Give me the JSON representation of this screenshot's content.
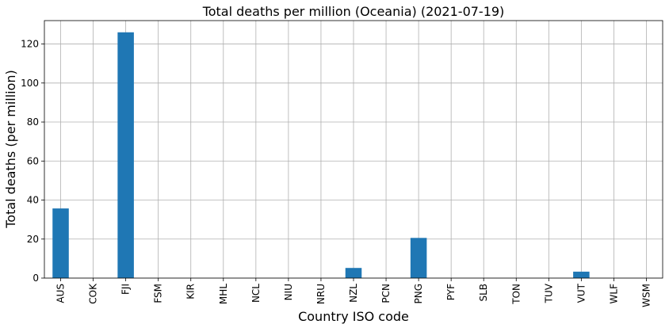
{
  "chart_data": {
    "type": "bar",
    "title": "Total deaths per million (Oceania) (2021-07-19)",
    "xlabel": "Country ISO code",
    "ylabel": "Total deaths (per million)",
    "categories": [
      "AUS",
      "COK",
      "FJI",
      "FSM",
      "KIR",
      "MHL",
      "NCL",
      "NIU",
      "NRU",
      "NZL",
      "PCN",
      "PNG",
      "PYF",
      "SLB",
      "TON",
      "TUV",
      "VUT",
      "WLF",
      "WSM"
    ],
    "values": [
      35.7,
      0,
      126,
      0,
      0,
      0,
      0,
      0,
      0,
      5.2,
      0,
      20.6,
      0,
      0,
      0,
      0,
      3.3,
      0,
      0
    ],
    "ylim": [
      0,
      132
    ],
    "yticks": [
      0,
      20,
      40,
      60,
      80,
      100,
      120
    ],
    "grid": true,
    "bar_color": "#1f77b4"
  }
}
